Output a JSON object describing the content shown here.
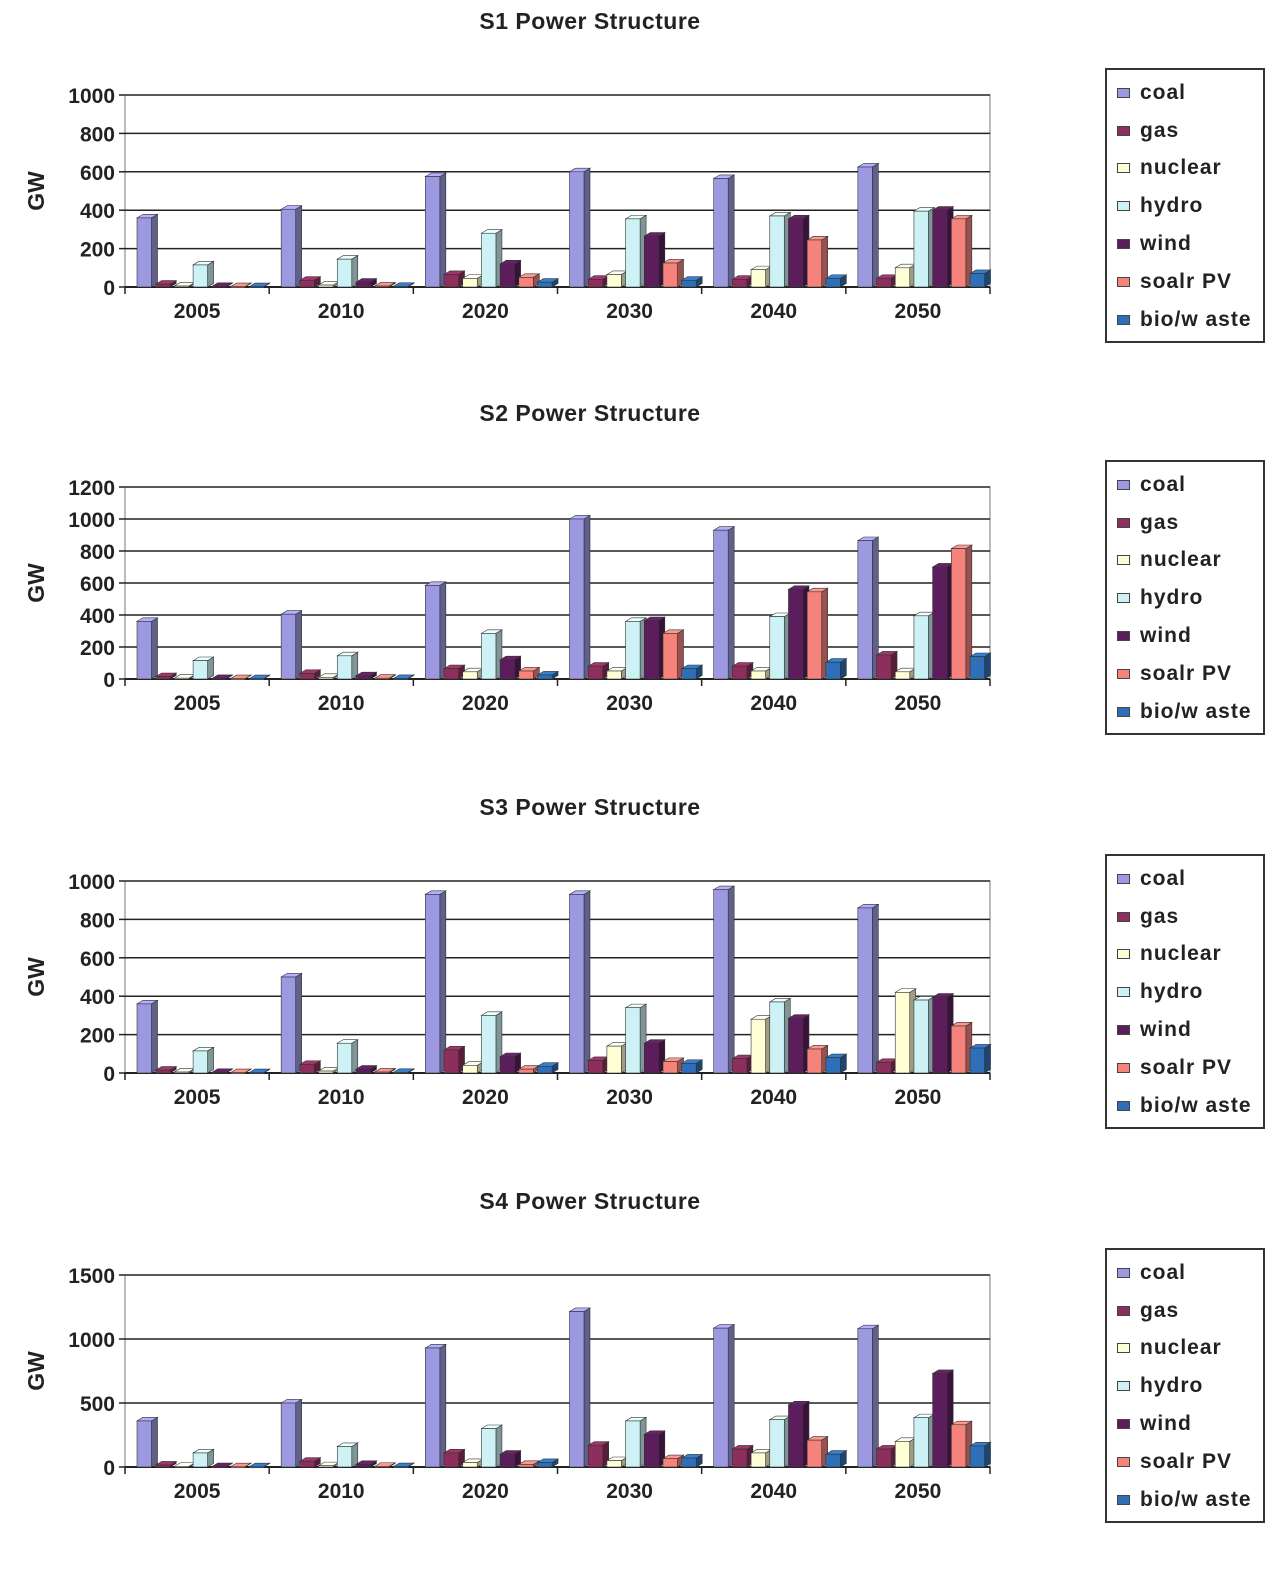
{
  "colors": {
    "coal": "#9c99e0",
    "gas": "#8c2f5c",
    "nuclear": "#ffffd6",
    "hydro": "#cdf2f5",
    "wind": "#5c1d5c",
    "soalr PV": "#f5837c",
    "bio/waste": "#2f6fb8"
  },
  "chart_data": [
    {
      "type": "bar",
      "title": "S1 Power Structure",
      "ylabel": "GW",
      "xlabel": "",
      "ylim": [
        0,
        1000
      ],
      "yticks": [
        0,
        200,
        400,
        600,
        800,
        1000
      ],
      "categories": [
        "2005",
        "2010",
        "2020",
        "2030",
        "2040",
        "2050"
      ],
      "legend_position": "right",
      "grid": true,
      "series": [
        {
          "name": "coal",
          "values": [
            360,
            405,
            575,
            600,
            565,
            625
          ]
        },
        {
          "name": "gas",
          "values": [
            15,
            35,
            65,
            40,
            40,
            45
          ]
        },
        {
          "name": "nuclear",
          "values": [
            5,
            10,
            45,
            65,
            90,
            100
          ]
        },
        {
          "name": "hydro",
          "values": [
            115,
            145,
            280,
            355,
            370,
            395
          ]
        },
        {
          "name": "wind",
          "values": [
            3,
            25,
            120,
            265,
            355,
            400
          ]
        },
        {
          "name": "soalr PV",
          "values": [
            2,
            5,
            50,
            125,
            245,
            355
          ]
        },
        {
          "name": "bio/w aste",
          "values": [
            2,
            3,
            25,
            35,
            45,
            70
          ]
        }
      ]
    },
    {
      "type": "bar",
      "title": "S2 Power Structure",
      "ylabel": "GW",
      "xlabel": "",
      "ylim": [
        0,
        1200
      ],
      "yticks": [
        0,
        200,
        400,
        600,
        800,
        1000,
        1200
      ],
      "categories": [
        "2005",
        "2010",
        "2020",
        "2030",
        "2040",
        "2050"
      ],
      "legend_position": "right",
      "grid": true,
      "series": [
        {
          "name": "coal",
          "values": [
            360,
            405,
            585,
            1000,
            930,
            865
          ]
        },
        {
          "name": "gas",
          "values": [
            15,
            35,
            65,
            80,
            80,
            150
          ]
        },
        {
          "name": "nuclear",
          "values": [
            5,
            10,
            45,
            50,
            50,
            45
          ]
        },
        {
          "name": "hydro",
          "values": [
            115,
            145,
            285,
            360,
            390,
            395
          ]
        },
        {
          "name": "wind",
          "values": [
            3,
            20,
            120,
            365,
            560,
            700
          ]
        },
        {
          "name": "soalr PV",
          "values": [
            2,
            5,
            50,
            285,
            545,
            815
          ]
        },
        {
          "name": "bio/w aste",
          "values": [
            2,
            3,
            25,
            65,
            105,
            140
          ]
        }
      ]
    },
    {
      "type": "bar",
      "title": "S3 Power Structure",
      "ylabel": "GW",
      "xlabel": "",
      "ylim": [
        0,
        1000
      ],
      "yticks": [
        0,
        200,
        400,
        600,
        800,
        1000
      ],
      "categories": [
        "2005",
        "2010",
        "2020",
        "2030",
        "2040",
        "2050"
      ],
      "legend_position": "right",
      "grid": true,
      "series": [
        {
          "name": "coal",
          "values": [
            360,
            500,
            930,
            930,
            955,
            860
          ]
        },
        {
          "name": "gas",
          "values": [
            15,
            45,
            120,
            65,
            75,
            55
          ]
        },
        {
          "name": "nuclear",
          "values": [
            5,
            10,
            40,
            140,
            280,
            420
          ]
        },
        {
          "name": "hydro",
          "values": [
            115,
            155,
            300,
            340,
            370,
            380
          ]
        },
        {
          "name": "wind",
          "values": [
            3,
            20,
            85,
            155,
            285,
            395
          ]
        },
        {
          "name": "soalr PV",
          "values": [
            2,
            5,
            20,
            60,
            125,
            245
          ]
        },
        {
          "name": "bio/w aste",
          "values": [
            2,
            3,
            35,
            50,
            80,
            130
          ]
        }
      ]
    },
    {
      "type": "bar",
      "title": "S4 Power Structure",
      "ylabel": "GW",
      "xlabel": "",
      "ylim": [
        0,
        1500
      ],
      "yticks": [
        0,
        500,
        1000,
        1500
      ],
      "categories": [
        "2005",
        "2010",
        "2020",
        "2030",
        "2040",
        "2050"
      ],
      "legend_position": "right",
      "grid": true,
      "series": [
        {
          "name": "coal",
          "values": [
            360,
            500,
            930,
            1215,
            1085,
            1080
          ]
        },
        {
          "name": "gas",
          "values": [
            15,
            45,
            110,
            170,
            140,
            140
          ]
        },
        {
          "name": "nuclear",
          "values": [
            5,
            10,
            35,
            50,
            110,
            200
          ]
        },
        {
          "name": "hydro",
          "values": [
            110,
            160,
            300,
            360,
            370,
            385
          ]
        },
        {
          "name": "wind",
          "values": [
            3,
            20,
            100,
            255,
            485,
            730
          ]
        },
        {
          "name": "soalr PV",
          "values": [
            2,
            5,
            20,
            65,
            210,
            330
          ]
        },
        {
          "name": "bio/w aste",
          "values": [
            2,
            3,
            35,
            70,
            100,
            165
          ]
        }
      ]
    }
  ]
}
